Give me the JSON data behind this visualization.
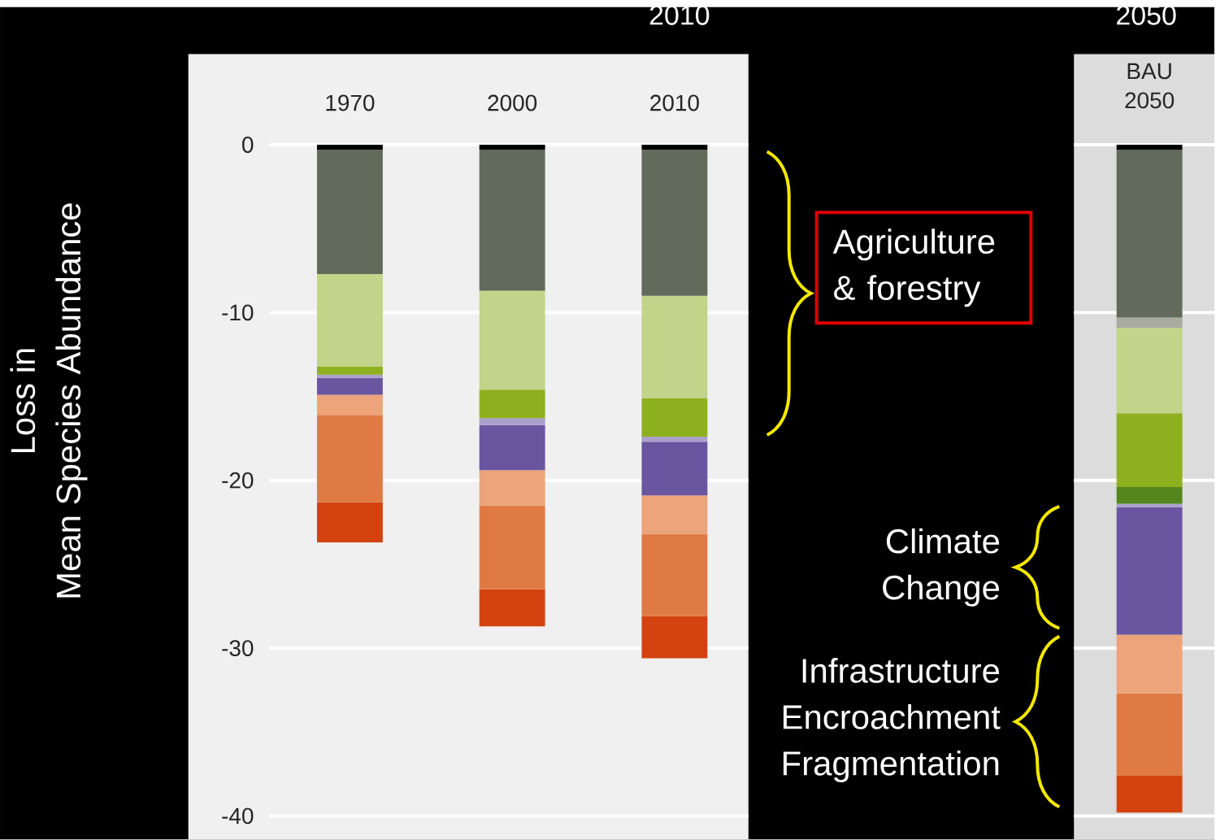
{
  "chart_data": [
    {
      "type": "bar",
      "title": "2010",
      "ylabel": "Loss in\nMean Species Abundance",
      "categories": [
        "1970",
        "2000",
        "2010"
      ],
      "stacked": true,
      "ylim": [
        -41.4,
        5.4
      ],
      "yticks": [
        0,
        -10,
        -20,
        -30,
        -40
      ],
      "grid": "y",
      "series": [
        {
          "color": "#000000",
          "values": [
            -0.3,
            -0.3,
            -0.3
          ]
        },
        {
          "color": "#626a5c",
          "values": [
            -7.4,
            -8.4,
            -8.7
          ]
        },
        {
          "color": "#c1d48a",
          "values": [
            -5.5,
            -5.9,
            -6.1
          ]
        },
        {
          "color": "#8db01e",
          "values": [
            -0.5,
            -1.7,
            -2.3
          ]
        },
        {
          "color": "#aaa0cc",
          "values": [
            -0.2,
            -0.4,
            -0.3
          ]
        },
        {
          "color": "#6a55a0",
          "values": [
            -1.0,
            -2.7,
            -3.2
          ]
        },
        {
          "color": "#eda47a",
          "values": [
            -1.2,
            -2.1,
            -2.3
          ]
        },
        {
          "color": "#e07a44",
          "values": [
            -5.2,
            -5.0,
            -4.9
          ]
        },
        {
          "color": "#d4430f",
          "values": [
            -2.4,
            -2.2,
            -2.5
          ]
        }
      ]
    },
    {
      "type": "bar",
      "title": "2050",
      "categories": [
        "BAU 2050"
      ],
      "stacked": true,
      "ylim": [
        -41.4,
        5.4
      ],
      "yticks": [
        0,
        -10,
        -20,
        -30,
        -40
      ],
      "grid": "y",
      "tick_labels": "x",
      "annotations": [
        "Agriculture & forestry",
        "Climate Change",
        "Infrastructure Encroachment Fragmentation"
      ],
      "series": [
        {
          "color": "#000000",
          "values": [
            -0.3
          ]
        },
        {
          "color": "#626a5c",
          "values": [
            -10.0
          ]
        },
        {
          "color": "#a9aba0",
          "values": [
            -0.6
          ]
        },
        {
          "color": "#c1d48a",
          "values": [
            -5.1
          ]
        },
        {
          "color": "#8db01e",
          "values": [
            -4.4
          ]
        },
        {
          "color": "#55861d",
          "values": [
            -1.0
          ]
        },
        {
          "color": "#aaa0cc",
          "values": [
            -0.2
          ]
        },
        {
          "color": "#6a55a0",
          "values": [
            -7.6
          ]
        },
        {
          "color": "#eda47a",
          "values": [
            -3.5
          ]
        },
        {
          "color": "#e07a44",
          "values": [
            -4.9
          ]
        },
        {
          "color": "#d4430f",
          "values": [
            -2.2
          ]
        }
      ]
    }
  ]
}
